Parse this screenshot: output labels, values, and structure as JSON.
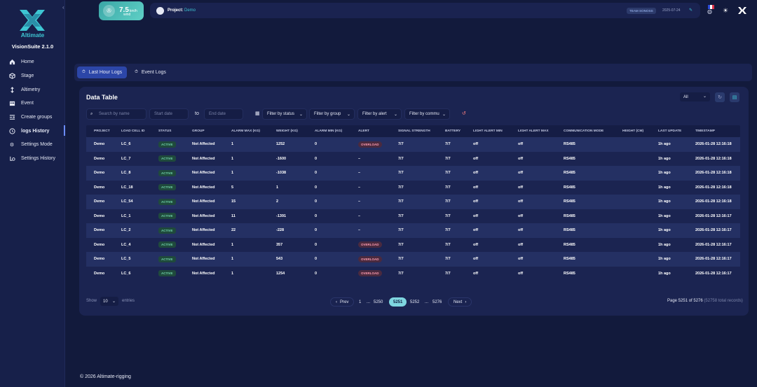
{
  "sidebar": {
    "brand": "Altimate",
    "version": "VisionSuite 2.1.0",
    "items": [
      {
        "label": "Home",
        "icon": "home-icon"
      },
      {
        "label": "Stage",
        "icon": "stage-icon"
      },
      {
        "label": "Altimetry",
        "icon": "altimetry-icon"
      },
      {
        "label": "Event",
        "icon": "event-icon"
      },
      {
        "label": "Create groups",
        "icon": "groups-icon"
      },
      {
        "label": "logs History",
        "icon": "history-icon"
      },
      {
        "label": "Settings Mode",
        "icon": "gear-icon"
      },
      {
        "label": "Settings History",
        "icon": "settings-history-icon"
      }
    ]
  },
  "wind": {
    "value": "7.5",
    "unit": "km/h",
    "label": "wind"
  },
  "header": {
    "project_label": "Project:",
    "project_name": "Demo",
    "team": "TEAM SONOSS",
    "date": "2025-07-24"
  },
  "tabs": [
    {
      "label": "Last Hour Logs",
      "active": true
    },
    {
      "label": "Event Logs",
      "active": false
    }
  ],
  "table": {
    "title": "Data Table",
    "view_select": "All",
    "filters": {
      "search_placeholder": "Search by name",
      "start_placeholder": "Start date",
      "to": "to",
      "end_placeholder": "End date",
      "status": "Filter by status",
      "group": "Filter by group",
      "alert": "Filter by alert",
      "commu": "Filter by commu"
    },
    "columns": [
      "PROJECT",
      "LOAD CELL ID",
      "STATUS",
      "GROUP",
      "ALARM MAX (KG)",
      "WEIGHT (KG)",
      "ALARM MIN (KG)",
      "ALERT",
      "SIGNAL STRENGTH",
      "BATTERY",
      "LIGHT ALERT MIN",
      "LIGHT ALERT MAX",
      "COMMUNICATION MODE",
      "HEIGHT (CM)",
      "LAST UPDATE",
      "TIMESTAMP"
    ],
    "rows": [
      [
        "Demo",
        "LC_6",
        "ACTIVE",
        "Not Affected",
        "1",
        "1252",
        "0",
        "OVERLOAD",
        "7/7",
        "7/7",
        "off",
        "off",
        "RS485",
        "",
        "1h ago",
        "2026-01-28 12:16:18"
      ],
      [
        "Demo",
        "LC_7",
        "ACTIVE",
        "Not Affected",
        "1",
        "-1600",
        "0",
        "–",
        "7/7",
        "7/7",
        "off",
        "off",
        "RS485",
        "",
        "1h ago",
        "2026-01-28 12:16:18"
      ],
      [
        "Demo",
        "LC_8",
        "ACTIVE",
        "Not Affected",
        "1",
        "-1038",
        "0",
        "–",
        "7/7",
        "7/7",
        "off",
        "off",
        "RS485",
        "",
        "1h ago",
        "2026-01-28 12:16:18"
      ],
      [
        "Demo",
        "LC_18",
        "ACTIVE",
        "Not Affected",
        "5",
        "1",
        "0",
        "–",
        "7/7",
        "7/7",
        "off",
        "off",
        "RS485",
        "",
        "1h ago",
        "2026-01-28 12:16:18"
      ],
      [
        "Demo",
        "LC_54",
        "ACTIVE",
        "Not Affected",
        "15",
        "2",
        "0",
        "–",
        "7/7",
        "7/7",
        "off",
        "off",
        "RS485",
        "",
        "1h ago",
        "2026-01-28 12:16:18"
      ],
      [
        "Demo",
        "LC_1",
        "ACTIVE",
        "Not Affected",
        "11",
        "-1391",
        "0",
        "–",
        "7/7",
        "7/7",
        "off",
        "off",
        "RS485",
        "",
        "1h ago",
        "2026-01-28 12:16:17"
      ],
      [
        "Demo",
        "LC_2",
        "ACTIVE",
        "Not Affected",
        "22",
        "-228",
        "0",
        "–",
        "7/7",
        "7/7",
        "off",
        "off",
        "RS485",
        "",
        "1h ago",
        "2026-01-28 12:16:17"
      ],
      [
        "Demo",
        "LC_4",
        "ACTIVE",
        "Not Affected",
        "1",
        "357",
        "0",
        "OVERLOAD",
        "7/7",
        "7/7",
        "off",
        "off",
        "RS485",
        "",
        "1h ago",
        "2026-01-28 12:16:17"
      ],
      [
        "Demo",
        "LC_5",
        "ACTIVE",
        "Not Affected",
        "1",
        "543",
        "0",
        "OVERLOAD",
        "7/7",
        "7/7",
        "off",
        "off",
        "RS485",
        "",
        "1h ago",
        "2026-01-28 12:16:17"
      ],
      [
        "Demo",
        "LC_6",
        "ACTIVE",
        "Not Affected",
        "1",
        "1254",
        "0",
        "OVERLOAD",
        "7/7",
        "7/7",
        "off",
        "off",
        "RS485",
        "",
        "1h ago",
        "2026-01-28 12:16:17"
      ]
    ]
  },
  "pagination": {
    "show": "Show",
    "per_page": "10",
    "entries": "entries",
    "prev": "Prev",
    "next": "Next",
    "pages": [
      "1",
      "...",
      "5250",
      "5251",
      "5252",
      "...",
      "5276"
    ],
    "current": "5251",
    "info": "Page 5251 of 5276",
    "total": "(52758 total records)"
  },
  "footer": "© 2026  Altimate-rigging",
  "colors": {
    "accent": "#3ec6d3",
    "active_tab": "#2c46a8",
    "badge_green": "#6fd0a8",
    "overload": "#ff9cb0"
  }
}
